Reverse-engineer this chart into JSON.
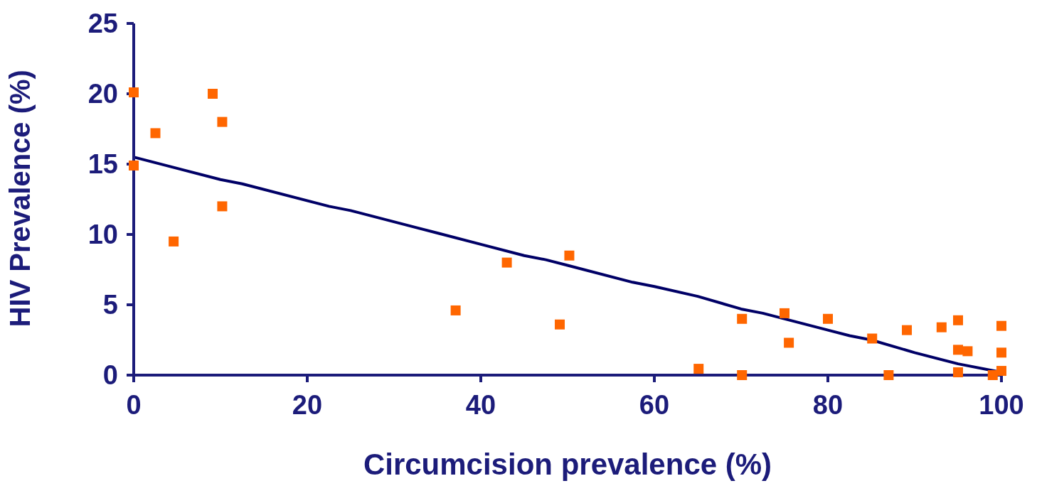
{
  "chart_data": {
    "type": "scatter",
    "xlabel": "Circumcision prevalence (%)",
    "ylabel": "HIV Prevalence (%)",
    "xlim": [
      0,
      100
    ],
    "xticks": [
      0,
      20,
      40,
      60,
      80,
      100
    ],
    "ylim": [
      0,
      25
    ],
    "yticks": [
      0,
      5,
      10,
      15,
      20,
      25
    ],
    "grid": false,
    "legend": false,
    "series": [
      {
        "type": "scatter",
        "color": "#ff6600",
        "marker": "square",
        "x": [
          0,
          0,
          2.5,
          4.6,
          9.1,
          10.2,
          10.2,
          37.1,
          43,
          49.1,
          50.2,
          65.1,
          70.1,
          70.1,
          75,
          75.5,
          80,
          85.1,
          87,
          89.1,
          93.1,
          95,
          95,
          96.1,
          95,
          99,
          100,
          100,
          100
        ],
        "values": [
          20.1,
          14.9,
          17.2,
          9.5,
          20,
          18,
          12,
          4.6,
          8,
          3.6,
          8.5,
          0.45,
          4,
          0,
          4.4,
          2.3,
          4,
          2.6,
          0,
          3.2,
          3.4,
          3.9,
          1.8,
          1.7,
          0.2,
          0,
          3.5,
          1.6,
          0.3
        ]
      },
      {
        "type": "line",
        "color": "#000066",
        "marker": "none",
        "line_style": "solid",
        "x": [
          0,
          10,
          12.5,
          22.5,
          25,
          32.5,
          35,
          40,
          45,
          47.5,
          50,
          57.5,
          60,
          65,
          70,
          72.5,
          80,
          82.5,
          85,
          90,
          95,
          100
        ],
        "values": [
          15.5,
          13.9,
          13.6,
          12,
          11.7,
          10.5,
          10.1,
          9.3,
          8.5,
          8.2,
          7.8,
          6.6,
          6.3,
          5.6,
          4.7,
          4.4,
          3.2,
          2.8,
          2.5,
          1.6,
          0.8,
          0.2
        ]
      }
    ]
  }
}
